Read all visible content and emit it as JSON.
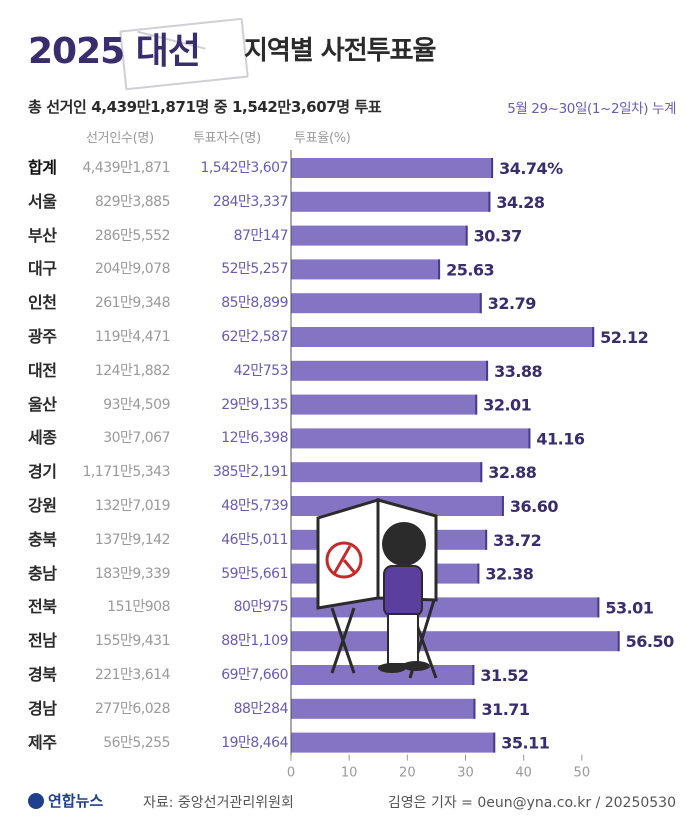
{
  "title": {
    "main": "2025 대선",
    "sub": "지역별 사전투표율"
  },
  "summary": "총 선거인 4,439만1,871명 중 1,542만3,607명 투표",
  "period": "5월 29~30일(1~2일차) 누계",
  "columns": {
    "voters": "선거인수(명)",
    "voted": "투표자수(명)",
    "rate": "투표율(%)"
  },
  "chart_data": {
    "type": "bar",
    "orientation": "horizontal",
    "categories": [
      "합계",
      "서울",
      "부산",
      "대구",
      "인천",
      "광주",
      "대전",
      "울산",
      "세종",
      "경기",
      "강원",
      "충북",
      "충남",
      "전북",
      "전남",
      "경북",
      "경남",
      "제주"
    ],
    "voters": [
      "4,439만1,871",
      "829만3,885",
      "286만5,552",
      "204만9,078",
      "261만9,348",
      "119만4,471",
      "124만1,882",
      "93만4,509",
      "30만7,067",
      "1,171만5,343",
      "132만7,019",
      "137만9,142",
      "183만9,339",
      "151만908",
      "155만9,431",
      "221만3,614",
      "277만6,028",
      "56만5,255"
    ],
    "voted": [
      "1,542만3,607",
      "284만3,337",
      "87만147",
      "52만5,257",
      "85만8,899",
      "62만2,587",
      "42만753",
      "29만9,135",
      "12만6,398",
      "385만2,191",
      "48만5,739",
      "46만5,011",
      "59만5,661",
      "80만975",
      "88만1,109",
      "69만7,660",
      "88만284",
      "19만8,464"
    ],
    "values": [
      34.74,
      34.28,
      30.37,
      25.63,
      32.79,
      52.12,
      33.88,
      32.01,
      41.16,
      32.88,
      36.6,
      33.72,
      32.38,
      53.01,
      56.5,
      31.52,
      31.71,
      35.11
    ],
    "value_labels": [
      "34.74%",
      "34.28",
      "30.37",
      "25.63",
      "32.79",
      "52.12",
      "33.88",
      "32.01",
      "41.16",
      "32.88",
      "36.60",
      "33.72",
      "32.38",
      "53.01",
      "56.50",
      "31.52",
      "31.71",
      "35.11"
    ],
    "xlim": [
      0,
      60
    ],
    "xticks": [
      0,
      10,
      20,
      30,
      40,
      50
    ],
    "xtick_labels": [
      "0",
      "10",
      "20",
      "30",
      "40",
      "50"
    ],
    "bar_color": "#8573c4",
    "label_color": "#3a2d6e",
    "grid": false
  },
  "footer": {
    "logo": "연합뉴스",
    "source": "자료: 중앙선거관리위원회",
    "credit": "김영은 기자 = 0eun@yna.co.kr / 20250530"
  }
}
